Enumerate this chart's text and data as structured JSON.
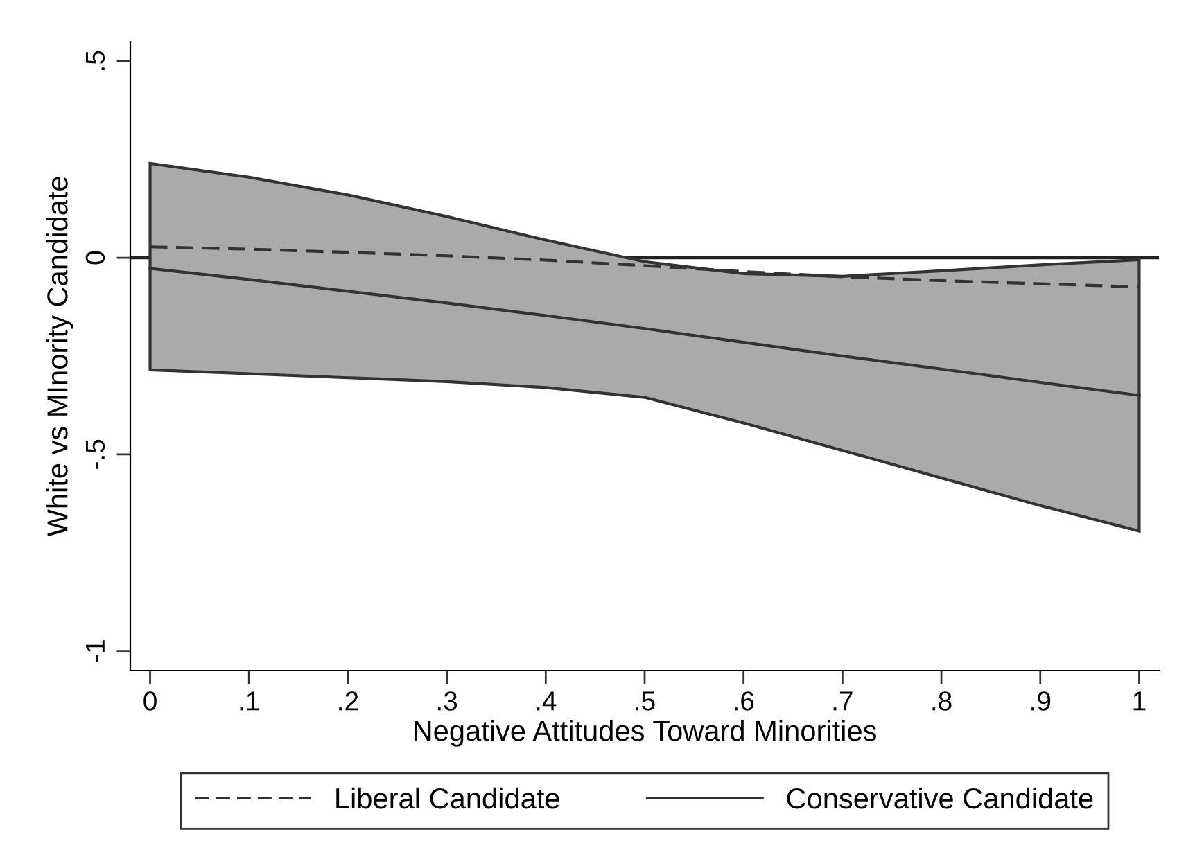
{
  "chart_data": {
    "type": "line",
    "xlabel": "Negative Attitudes Toward Minorities",
    "ylabel": "White vs MInority Candidate",
    "x": [
      0,
      0.1,
      0.2,
      0.3,
      0.4,
      0.5,
      0.6,
      0.7,
      0.8,
      0.9,
      1
    ],
    "series": [
      {
        "name": "Liberal Candidate",
        "color": "#333333",
        "line_style": "dashed",
        "values": [
          0.028,
          0.022,
          0.014,
          0.005,
          -0.006,
          -0.02,
          -0.035,
          -0.048,
          -0.058,
          -0.066,
          -0.074
        ]
      },
      {
        "name": "Conservative Candidate",
        "color": "#333333",
        "line_style": "solid",
        "values": [
          -0.027,
          -0.055,
          -0.085,
          -0.115,
          -0.147,
          -0.18,
          -0.215,
          -0.25,
          -0.283,
          -0.317,
          -0.35
        ],
        "lower": [
          -0.285,
          -0.295,
          -0.305,
          -0.315,
          -0.33,
          -0.355,
          -0.42,
          -0.49,
          -0.56,
          -0.63,
          -0.695
        ],
        "upper": [
          0.24,
          0.205,
          0.16,
          0.105,
          0.045,
          -0.01,
          -0.04,
          -0.047,
          -0.033,
          -0.018,
          -0.005
        ]
      }
    ],
    "xlim": [
      -0.02,
      1.02
    ],
    "ylim": [
      -1.05,
      0.55
    ],
    "xticks": [
      0,
      {
        "value": 0.1,
        "label": ".1"
      },
      {
        "value": 0.2,
        "label": ".2"
      },
      {
        "value": 0.3,
        "label": ".3"
      },
      {
        "value": 0.4,
        "label": ".4"
      },
      {
        "value": 0.5,
        "label": ".5"
      },
      {
        "value": 0.6,
        "label": ".6"
      },
      {
        "value": 0.7,
        "label": ".7"
      },
      {
        "value": 0.8,
        "label": ".8"
      },
      {
        "value": 0.9,
        "label": ".9"
      },
      1
    ],
    "yticks": [
      {
        "value": -1,
        "label": "-1"
      },
      {
        "value": -0.5,
        "label": "-.5"
      },
      0,
      {
        "value": 0.5,
        "label": ".5"
      }
    ],
    "ref_lines": [
      {
        "axis": "y",
        "value": 0,
        "color": "#222222",
        "line_style": "solid"
      }
    ],
    "grid": false,
    "legend": "bottom",
    "marker": "none"
  }
}
